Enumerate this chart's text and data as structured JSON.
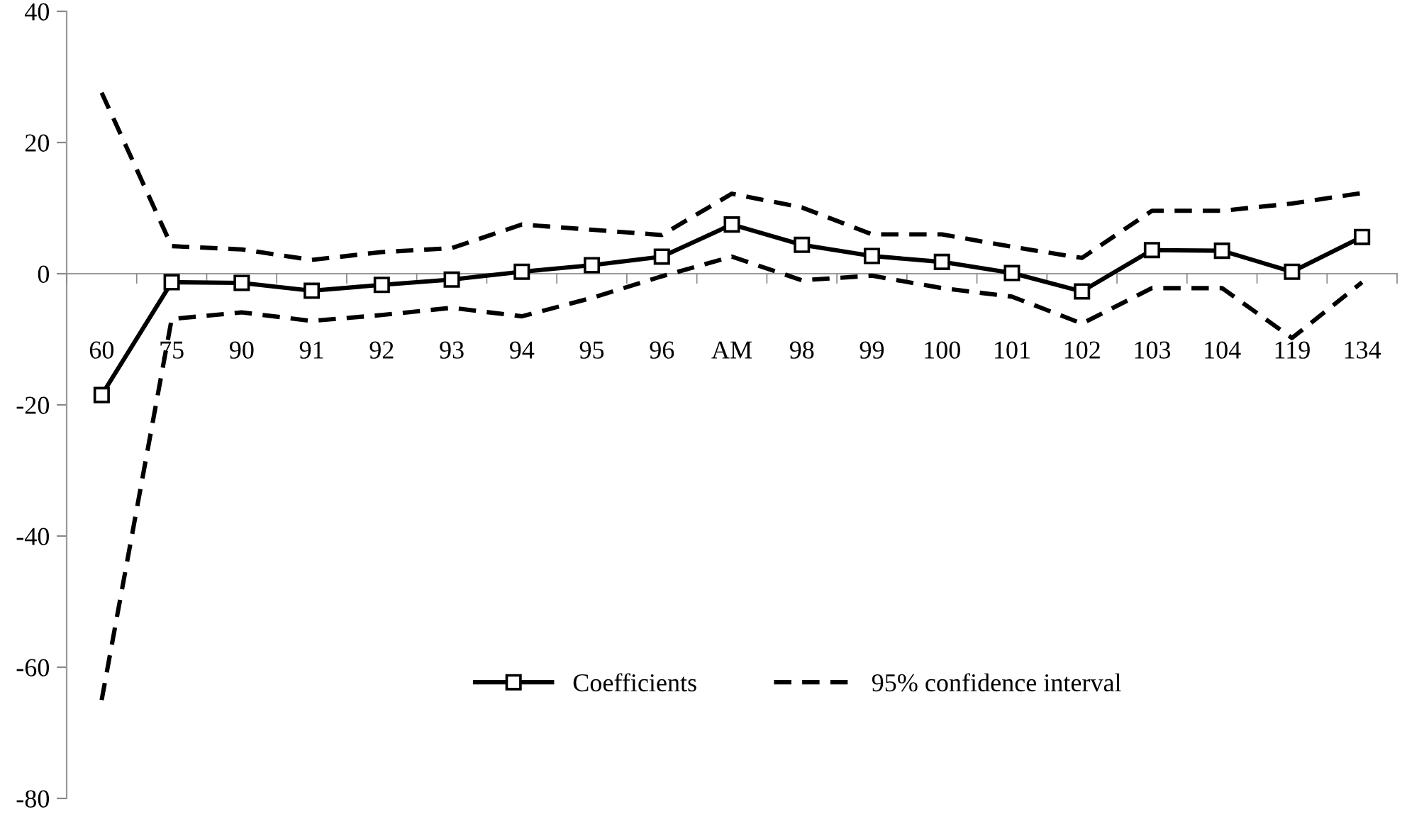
{
  "chart_data": {
    "type": "line",
    "categories": [
      "60",
      "75",
      "90",
      "91",
      "92",
      "93",
      "94",
      "95",
      "96",
      "AM",
      "98",
      "99",
      "100",
      "101",
      "102",
      "103",
      "104",
      "119",
      "134"
    ],
    "series": [
      {
        "name": "Coefficients",
        "color": "#000000",
        "marker": "square",
        "line_style": "solid",
        "values": [
          -18.5,
          -1.3,
          -1.4,
          -2.6,
          -1.7,
          -0.9,
          0.3,
          1.3,
          2.6,
          7.5,
          4.4,
          2.7,
          1.8,
          0.1,
          -2.7,
          3.6,
          3.5,
          0.3,
          5.6
        ]
      },
      {
        "name": "95% confidence interval",
        "color": "#000000",
        "marker": "none",
        "line_style": "dashed",
        "values": [
          27.6,
          4.2,
          3.7,
          2.1,
          3.3,
          3.9,
          7.5,
          6.7,
          5.9,
          12.2,
          10.1,
          6.0,
          6.0,
          4.1,
          2.4,
          9.6,
          9.6,
          10.7,
          12.3
        ]
      },
      {
        "color": "#000000",
        "marker": "none",
        "line_style": "dashed",
        "values": [
          -65,
          -6.9,
          -5.9,
          -7.2,
          -6.3,
          -5.2,
          -6.5,
          -3.7,
          -0.4,
          2.6,
          -1.0,
          -0.3,
          -2.2,
          -3.5,
          -7.6,
          -2.2,
          -2.2,
          -9.8,
          -1.3
        ]
      }
    ],
    "ylim": [
      -80,
      40
    ],
    "yticks": [
      -80,
      -60,
      -40,
      -20,
      0,
      20,
      40
    ],
    "legend": "bottom"
  }
}
